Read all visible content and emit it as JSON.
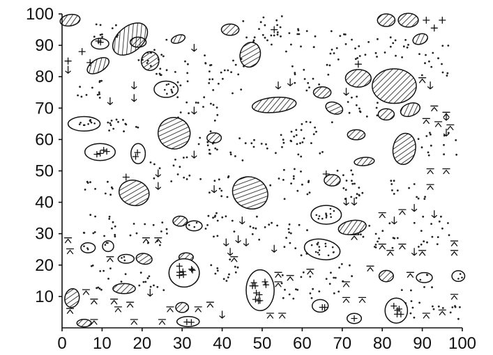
{
  "figure": {
    "x_axis": {
      "min": 0,
      "max": 100,
      "ticks": [
        "0",
        "10",
        "20",
        "30",
        "40",
        "50",
        "60",
        "70",
        "80",
        "90",
        "100"
      ]
    },
    "y_axis": {
      "min": 0,
      "max": 100,
      "ticks": [
        "10",
        "20",
        "30",
        "40",
        "50",
        "60",
        "70",
        "80",
        "90",
        "100"
      ]
    },
    "symbol_types": [
      "hatched-patch",
      "dotted-patch",
      "cross-patch",
      "plain-patch",
      "dot-cluster",
      "cross-symbol",
      "arrow-symbol",
      "hat-symbol"
    ],
    "hatched_patches": [
      {
        "x": 2,
        "y": 98,
        "rx": 2.5,
        "ry": 1.8,
        "rot": -10
      },
      {
        "x": 17,
        "y": 92,
        "rx": 5,
        "ry": 4,
        "rot": -40
      },
      {
        "x": 9,
        "y": 83.5,
        "rx": 3,
        "ry": 2,
        "rot": -30
      },
      {
        "x": 19,
        "y": 91,
        "rx": 2,
        "ry": 1.6,
        "rot": 0
      },
      {
        "x": 22,
        "y": 85,
        "rx": 2.2,
        "ry": 3,
        "rot": 10
      },
      {
        "x": 29,
        "y": 92,
        "rx": 1.8,
        "ry": 1.2,
        "rot": -20
      },
      {
        "x": 42,
        "y": 95,
        "rx": 2.2,
        "ry": 1.8,
        "rot": 0
      },
      {
        "x": 47,
        "y": 87,
        "rx": 2.5,
        "ry": 4,
        "rot": 15
      },
      {
        "x": 28,
        "y": 62,
        "rx": 4,
        "ry": 5,
        "rot": 20
      },
      {
        "x": 38,
        "y": 60.5,
        "rx": 1.8,
        "ry": 1.6,
        "rot": 0
      },
      {
        "x": 53,
        "y": 71,
        "rx": 5.5,
        "ry": 2.4,
        "rot": -5
      },
      {
        "x": 65,
        "y": 75,
        "rx": 2.2,
        "ry": 1.8,
        "rot": 0
      },
      {
        "x": 68,
        "y": 70,
        "rx": 2.2,
        "ry": 1.8,
        "rot": 20
      },
      {
        "x": 74,
        "y": 79.5,
        "rx": 3.2,
        "ry": 2.8,
        "rot": 0
      },
      {
        "x": 83,
        "y": 77,
        "rx": 5.5,
        "ry": 5.5,
        "rot": 0
      },
      {
        "x": 81,
        "y": 68,
        "rx": 2,
        "ry": 1.8,
        "rot": 0
      },
      {
        "x": 87,
        "y": 69.5,
        "rx": 2.5,
        "ry": 2,
        "rot": -20
      },
      {
        "x": 73.5,
        "y": 61.5,
        "rx": 2.2,
        "ry": 1.6,
        "rot": 0
      },
      {
        "x": 85.5,
        "y": 57,
        "rx": 2.8,
        "ry": 5,
        "rot": 10
      },
      {
        "x": 75.5,
        "y": 53,
        "rx": 2.5,
        "ry": 1.3,
        "rot": -5
      },
      {
        "x": 81,
        "y": 98,
        "rx": 2.2,
        "ry": 2,
        "rot": 0
      },
      {
        "x": 86.5,
        "y": 98,
        "rx": 2.5,
        "ry": 2.2,
        "rot": 0
      },
      {
        "x": 89.5,
        "y": 92,
        "rx": 1.9,
        "ry": 1.6,
        "rot": -20
      },
      {
        "x": 18,
        "y": 43,
        "rx": 3.8,
        "ry": 4,
        "rot": 15
      },
      {
        "x": 47,
        "y": 43,
        "rx": 4.5,
        "ry": 5,
        "rot": 25
      },
      {
        "x": 67.5,
        "y": 47,
        "rx": 2,
        "ry": 1.8,
        "rot": 0
      },
      {
        "x": 72.5,
        "y": 32,
        "rx": 3.5,
        "ry": 2.2,
        "rot": -10
      },
      {
        "x": 29.5,
        "y": 34,
        "rx": 1.8,
        "ry": 1.6,
        "rot": 0
      },
      {
        "x": 20.5,
        "y": 22,
        "rx": 2,
        "ry": 1.7,
        "rot": 10
      },
      {
        "x": 31,
        "y": 22.5,
        "rx": 1.8,
        "ry": 1.4,
        "rot": 0
      },
      {
        "x": 15.5,
        "y": 12.5,
        "rx": 2.8,
        "ry": 1.6,
        "rot": 0
      },
      {
        "x": 2.5,
        "y": 9.5,
        "rx": 1.8,
        "ry": 3,
        "rot": 10
      },
      {
        "x": 30,
        "y": 6.5,
        "rx": 1.6,
        "ry": 1.6,
        "rot": 0
      },
      {
        "x": 81,
        "y": 16.5,
        "rx": 1.8,
        "ry": 1.8,
        "rot": 0
      },
      {
        "x": 5.5,
        "y": 1.5,
        "rx": 1.8,
        "ry": 1.2,
        "rot": 0
      }
    ],
    "dotted_patches": [
      {
        "x": 26,
        "y": 76,
        "rx": 3,
        "ry": 2.6,
        "rot": 0
      },
      {
        "x": 5.5,
        "y": 65,
        "rx": 4,
        "ry": 2.3,
        "rot": 0
      },
      {
        "x": 33,
        "y": 32.5,
        "rx": 2,
        "ry": 1.6,
        "rot": 0
      },
      {
        "x": 66,
        "y": 36,
        "rx": 3.8,
        "ry": 3,
        "rot": 0
      },
      {
        "x": 65,
        "y": 25,
        "rx": 4.5,
        "ry": 3.2,
        "rot": 10
      },
      {
        "x": 6.5,
        "y": 25.5,
        "rx": 1.8,
        "ry": 1.6,
        "rot": 0
      },
      {
        "x": 11.5,
        "y": 26,
        "rx": 1.4,
        "ry": 1.7,
        "rot": 0
      },
      {
        "x": 16,
        "y": 22,
        "rx": 2,
        "ry": 1.4,
        "rot": 0
      },
      {
        "x": 90.5,
        "y": 16,
        "rx": 2,
        "ry": 1.6,
        "rot": 0
      },
      {
        "x": 99,
        "y": 16.5,
        "rx": 1.6,
        "ry": 1.7,
        "rot": 0
      }
    ],
    "cross_patches": [
      {
        "x": 9.5,
        "y": 90.5,
        "rx": 2.2,
        "ry": 1.7,
        "rot": 0
      },
      {
        "x": 9.5,
        "y": 56,
        "rx": 3.8,
        "ry": 2.7,
        "rot": 0
      },
      {
        "x": 19,
        "y": 55.5,
        "rx": 1.8,
        "ry": 3.2,
        "rot": 0
      },
      {
        "x": 30.5,
        "y": 17.5,
        "rx": 3.8,
        "ry": 4.5,
        "rot": 0
      },
      {
        "x": 49.5,
        "y": 12,
        "rx": 3.5,
        "ry": 6.5,
        "rot": 0
      },
      {
        "x": 64.5,
        "y": 7,
        "rx": 2,
        "ry": 2,
        "rot": 0
      },
      {
        "x": 73,
        "y": 3,
        "rx": 1.8,
        "ry": 1.6,
        "rot": 0
      },
      {
        "x": 83.5,
        "y": 5.5,
        "rx": 2.8,
        "ry": 4,
        "rot": 0
      },
      {
        "x": 31.5,
        "y": 2,
        "rx": 2.8,
        "ry": 1.6,
        "rot": 0
      }
    ],
    "dot_clusters": [
      {
        "x": 11,
        "y": 95,
        "w": 6,
        "h": 5,
        "n": 10
      },
      {
        "x": 6,
        "y": 76,
        "w": 8,
        "h": 6,
        "n": 12
      },
      {
        "x": 15,
        "y": 65,
        "w": 8,
        "h": 6,
        "n": 14
      },
      {
        "x": 23,
        "y": 86,
        "w": 8,
        "h": 12,
        "n": 18
      },
      {
        "x": 33,
        "y": 82,
        "w": 10,
        "h": 10,
        "n": 14
      },
      {
        "x": 34,
        "y": 70,
        "w": 12,
        "h": 8,
        "n": 14
      },
      {
        "x": 50,
        "y": 95,
        "w": 10,
        "h": 10,
        "n": 20
      },
      {
        "x": 59,
        "y": 92,
        "w": 10,
        "h": 8,
        "n": 14
      },
      {
        "x": 72,
        "y": 90,
        "w": 10,
        "h": 10,
        "n": 18
      },
      {
        "x": 83,
        "y": 90,
        "w": 10,
        "h": 8,
        "n": 14
      },
      {
        "x": 93,
        "y": 85,
        "w": 8,
        "h": 10,
        "n": 14
      },
      {
        "x": 41,
        "y": 80,
        "w": 10,
        "h": 12,
        "n": 16
      },
      {
        "x": 62,
        "y": 80,
        "w": 10,
        "h": 10,
        "n": 14
      },
      {
        "x": 40,
        "y": 58,
        "w": 12,
        "h": 10,
        "n": 18
      },
      {
        "x": 53,
        "y": 60,
        "w": 12,
        "h": 10,
        "n": 18
      },
      {
        "x": 64,
        "y": 60,
        "w": 10,
        "h": 12,
        "n": 16
      },
      {
        "x": 75,
        "y": 70,
        "w": 8,
        "h": 8,
        "n": 12
      },
      {
        "x": 94,
        "y": 58,
        "w": 10,
        "h": 10,
        "n": 14
      },
      {
        "x": 9,
        "y": 44,
        "w": 8,
        "h": 6,
        "n": 10
      },
      {
        "x": 27,
        "y": 50,
        "w": 10,
        "h": 10,
        "n": 14
      },
      {
        "x": 38,
        "y": 45,
        "w": 8,
        "h": 8,
        "n": 10
      },
      {
        "x": 57,
        "y": 46,
        "w": 10,
        "h": 10,
        "n": 16
      },
      {
        "x": 74,
        "y": 46,
        "w": 12,
        "h": 10,
        "n": 18
      },
      {
        "x": 86,
        "y": 44,
        "w": 10,
        "h": 8,
        "n": 12
      },
      {
        "x": 10,
        "y": 33,
        "w": 10,
        "h": 8,
        "n": 14
      },
      {
        "x": 22,
        "y": 30,
        "w": 10,
        "h": 8,
        "n": 12
      },
      {
        "x": 39,
        "y": 33,
        "w": 10,
        "h": 8,
        "n": 14
      },
      {
        "x": 50,
        "y": 32,
        "w": 8,
        "h": 8,
        "n": 10
      },
      {
        "x": 58,
        "y": 28,
        "w": 8,
        "h": 10,
        "n": 12
      },
      {
        "x": 79,
        "y": 30,
        "w": 10,
        "h": 10,
        "n": 16
      },
      {
        "x": 93,
        "y": 30,
        "w": 10,
        "h": 12,
        "n": 16
      },
      {
        "x": 11,
        "y": 16,
        "w": 10,
        "h": 8,
        "n": 12
      },
      {
        "x": 23,
        "y": 14,
        "w": 8,
        "h": 8,
        "n": 10
      },
      {
        "x": 41,
        "y": 18,
        "w": 8,
        "h": 8,
        "n": 12
      },
      {
        "x": 58,
        "y": 14,
        "w": 10,
        "h": 10,
        "n": 14
      },
      {
        "x": 68,
        "y": 16,
        "w": 10,
        "h": 10,
        "n": 14
      },
      {
        "x": 88,
        "y": 8,
        "w": 10,
        "h": 10,
        "n": 14
      },
      {
        "x": 97,
        "y": 4,
        "w": 6,
        "h": 6,
        "n": 8
      }
    ],
    "cross_symbols": [
      {
        "x": 1.5,
        "y": 85
      },
      {
        "x": 5,
        "y": 88
      },
      {
        "x": 7,
        "y": 84.5
      },
      {
        "x": 53,
        "y": 95
      },
      {
        "x": 74,
        "y": 84
      },
      {
        "x": 91,
        "y": 98
      },
      {
        "x": 93,
        "y": 95.5
      },
      {
        "x": 95,
        "y": 98
      },
      {
        "x": 16,
        "y": 48
      },
      {
        "x": 66,
        "y": 49
      }
    ],
    "arrow_symbols": [
      {
        "x": 1.5,
        "y": 82
      },
      {
        "x": 18,
        "y": 77
      },
      {
        "x": 18,
        "y": 73
      },
      {
        "x": 12,
        "y": 72
      },
      {
        "x": 33,
        "y": 89
      },
      {
        "x": 33,
        "y": 69
      },
      {
        "x": 33,
        "y": 55
      },
      {
        "x": 24,
        "y": 49
      },
      {
        "x": 24,
        "y": 45
      },
      {
        "x": 38,
        "y": 44
      },
      {
        "x": 54,
        "y": 77
      },
      {
        "x": 57,
        "y": 78
      },
      {
        "x": 71,
        "y": 75
      },
      {
        "x": 92,
        "y": 77
      },
      {
        "x": 96,
        "y": 67
      },
      {
        "x": 96,
        "y": 62
      },
      {
        "x": 71,
        "y": 40
      },
      {
        "x": 88,
        "y": 38
      },
      {
        "x": 93,
        "y": 36
      },
      {
        "x": 45,
        "y": 34
      },
      {
        "x": 44,
        "y": 28
      },
      {
        "x": 41,
        "y": 27
      },
      {
        "x": 42,
        "y": 24
      },
      {
        "x": 46,
        "y": 27
      },
      {
        "x": 53,
        "y": 25
      },
      {
        "x": 73,
        "y": 40
      },
      {
        "x": 83,
        "y": 34
      },
      {
        "x": 88,
        "y": 24
      },
      {
        "x": 22,
        "y": 11
      },
      {
        "x": 40,
        "y": 4
      }
    ],
    "hat_symbols": [
      {
        "x": 1.5,
        "y": 28
      },
      {
        "x": 2,
        "y": 24.5
      },
      {
        "x": 6,
        "y": 11.5
      },
      {
        "x": 8,
        "y": 8.5
      },
      {
        "x": 2,
        "y": 5.5
      },
      {
        "x": 12,
        "y": 22
      },
      {
        "x": 13,
        "y": 8.5
      },
      {
        "x": 14,
        "y": 6
      },
      {
        "x": 17,
        "y": 7.5
      },
      {
        "x": 21,
        "y": 28
      },
      {
        "x": 24,
        "y": 28
      },
      {
        "x": 34,
        "y": 6
      },
      {
        "x": 37,
        "y": 7.5
      },
      {
        "x": 43,
        "y": 22
      },
      {
        "x": 52,
        "y": 4
      },
      {
        "x": 55,
        "y": 4
      },
      {
        "x": 54,
        "y": 14
      },
      {
        "x": 54,
        "y": 17
      },
      {
        "x": 57,
        "y": 16
      },
      {
        "x": 62,
        "y": 18
      },
      {
        "x": 71,
        "y": 14
      },
      {
        "x": 71,
        "y": 9
      },
      {
        "x": 75,
        "y": 9
      },
      {
        "x": 77,
        "y": 19
      },
      {
        "x": 80,
        "y": 26
      },
      {
        "x": 82,
        "y": 24
      },
      {
        "x": 85,
        "y": 26
      },
      {
        "x": 80,
        "y": 36
      },
      {
        "x": 85,
        "y": 37
      },
      {
        "x": 90,
        "y": 24
      },
      {
        "x": 92,
        "y": 45
      },
      {
        "x": 92,
        "y": 50
      },
      {
        "x": 96,
        "y": 50
      },
      {
        "x": 98,
        "y": 27
      },
      {
        "x": 98,
        "y": 24
      },
      {
        "x": 91,
        "y": 66
      },
      {
        "x": 93,
        "y": 70
      },
      {
        "x": 94,
        "y": 65
      },
      {
        "x": 97,
        "y": 64
      },
      {
        "x": 90,
        "y": 79
      },
      {
        "x": 96,
        "y": 68
      },
      {
        "x": 73,
        "y": 29
      },
      {
        "x": 87,
        "y": 17
      },
      {
        "x": 98,
        "y": 10
      },
      {
        "x": 91,
        "y": 4
      },
      {
        "x": 95,
        "y": 5
      },
      {
        "x": 27,
        "y": 6
      },
      {
        "x": 25,
        "y": 2
      },
      {
        "x": 18,
        "y": 2
      },
      {
        "x": 8,
        "y": 2
      }
    ]
  }
}
